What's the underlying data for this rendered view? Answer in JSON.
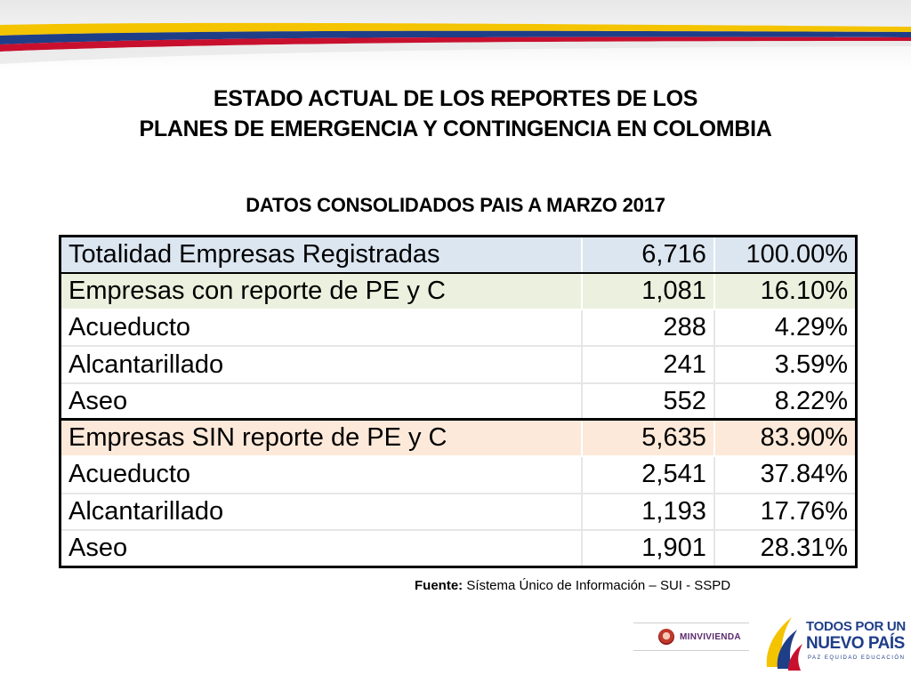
{
  "title": {
    "line1": "ESTADO ACTUAL DE LOS REPORTES DE LOS",
    "line2": "PLANES DE EMERGENCIA Y CONTINGENCIA EN COLOMBIA"
  },
  "subtitle": "DATOS CONSOLIDADOS PAIS A MARZO 2017",
  "table": {
    "rows": [
      {
        "label": "Totalidad Empresas Registradas",
        "count": "6,716",
        "percent": "100.00%"
      },
      {
        "label": "Empresas con reporte de PE y C",
        "count": "1,081",
        "percent": "16.10%"
      },
      {
        "label": "Acueducto",
        "count": "288",
        "percent": "4.29%"
      },
      {
        "label": "Alcantarillado",
        "count": "241",
        "percent": "3.59%"
      },
      {
        "label": "Aseo",
        "count": "552",
        "percent": "8.22%"
      },
      {
        "label": "Empresas SIN reporte de PE y C",
        "count": "5,635",
        "percent": "83.90%"
      },
      {
        "label": "Acueducto",
        "count": "2,541",
        "percent": "37.84%"
      },
      {
        "label": "Alcantarillado",
        "count": "1,193",
        "percent": "17.76%"
      },
      {
        "label": "Aseo",
        "count": "1,901",
        "percent": "28.31%"
      }
    ]
  },
  "source": {
    "label": "Fuente:",
    "text": " Sístema Único de Información – SUI - SSPD"
  },
  "logos": {
    "ministry": "MINVIVIENDA",
    "gov_line1": "TODOS POR UN",
    "gov_line2": "NUEVO PAÍS",
    "gov_line3": "PAZ  EQUIDAD  EDUCACIÓN"
  },
  "colors": {
    "flag_yellow": "#f4c400",
    "flag_blue": "#1f3e88",
    "flag_red": "#c8102e",
    "total_row_bg": "#dce6f1",
    "with_report_bg": "#ebf1de",
    "without_report_bg": "#fde9d9"
  }
}
